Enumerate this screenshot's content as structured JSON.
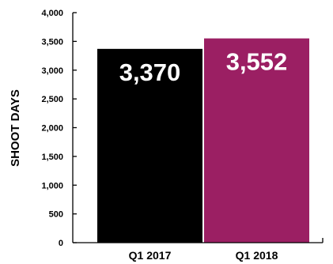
{
  "chart_data": {
    "type": "bar",
    "categories": [
      "Q1 2017",
      "Q1 2018"
    ],
    "values": [
      3370,
      3552
    ],
    "data_labels": [
      "3,370",
      "3,552"
    ],
    "bar_colors": [
      "#000000",
      "#9b1f63"
    ],
    "ylabel": "SHOOT DAYS",
    "xlabel": "",
    "ylim": [
      0,
      4000
    ],
    "yticks": [
      0,
      500,
      1000,
      1500,
      2000,
      2500,
      3000,
      3500,
      4000
    ],
    "ytick_labels": [
      "0",
      "500",
      "1,000",
      "1,500",
      "2,000",
      "2,500",
      "3,000",
      "3,500",
      "4,000"
    ],
    "grid": false,
    "legend": "none"
  }
}
